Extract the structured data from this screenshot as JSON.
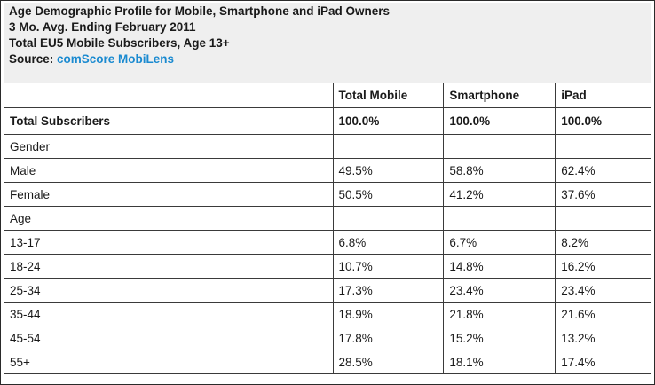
{
  "header": {
    "title": "Age Demographic Profile for Mobile, Smartphone and iPad Owners",
    "period": "3 Mo. Avg. Ending February 2011",
    "population": "Total EU5 Mobile Subscribers, Age 13+",
    "source_label": "Source: ",
    "source_name": "comScore MobiLens",
    "source_color": "#1a8ad0"
  },
  "table": {
    "columns": [
      "",
      "Total Mobile",
      "Smartphone",
      "iPad"
    ],
    "rows": [
      {
        "label": "Total Subscribers",
        "values": [
          "100.0%",
          "100.0%",
          "100.0%"
        ]
      },
      {
        "label": "Gender",
        "values": [
          "",
          "",
          ""
        ]
      },
      {
        "label": "Male",
        "values": [
          "49.5%",
          "58.8%",
          "62.4%"
        ]
      },
      {
        "label": "Female",
        "values": [
          "50.5%",
          "41.2%",
          "37.6%"
        ]
      },
      {
        "label": "Age",
        "values": [
          "",
          "",
          ""
        ]
      },
      {
        "label": "13-17",
        "values": [
          "6.8%",
          "6.7%",
          "8.2%"
        ]
      },
      {
        "label": "18-24",
        "values": [
          "10.7%",
          "14.8%",
          "16.2%"
        ]
      },
      {
        "label": "25-34",
        "values": [
          "17.3%",
          "23.4%",
          "23.4%"
        ]
      },
      {
        "label": "35-44",
        "values": [
          "18.9%",
          "21.8%",
          "21.6%"
        ]
      },
      {
        "label": "45-54",
        "values": [
          "17.8%",
          "15.2%",
          "13.2%"
        ]
      },
      {
        "label": "55+",
        "values": [
          "28.5%",
          "18.1%",
          "17.4%"
        ]
      }
    ]
  }
}
